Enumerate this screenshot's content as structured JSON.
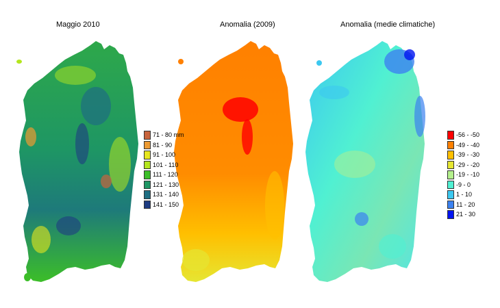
{
  "maps": [
    {
      "title": "Maggio 2010",
      "legend": [
        {
          "label": "71 - 80 mm",
          "color": "#c8643c"
        },
        {
          "label": "81 - 90",
          "color": "#ec9a32"
        },
        {
          "label": "91 - 100",
          "color": "#e6e61e"
        },
        {
          "label": "101 - 110",
          "color": "#b4e61e"
        },
        {
          "label": "111 - 120",
          "color": "#3cbe28"
        },
        {
          "label": "121 - 130",
          "color": "#1e9664"
        },
        {
          "label": "131 - 140",
          "color": "#1e6e82"
        },
        {
          "label": "141 - 150",
          "color": "#1e3c82"
        }
      ]
    },
    {
      "title": "Anomalia (2009)"
    },
    {
      "title": "Anomalia (medie climatiche)",
      "legend": [
        {
          "label": "-56 - -50",
          "color": "#ff0000"
        },
        {
          "label": "-49 - -40",
          "color": "#ff8000"
        },
        {
          "label": "-39 - -30",
          "color": "#ffbf00"
        },
        {
          "label": "-29 - -20",
          "color": "#e6e632"
        },
        {
          "label": "-19 - -10",
          "color": "#b4f08c"
        },
        {
          "label": "-9 - 0",
          "color": "#50f0d2"
        },
        {
          "label": "1 - 10",
          "color": "#3cc8f0"
        },
        {
          "label": "11 - 20",
          "color": "#3c82f0"
        },
        {
          "label": "21 - 30",
          "color": "#0014f0"
        }
      ]
    }
  ]
}
